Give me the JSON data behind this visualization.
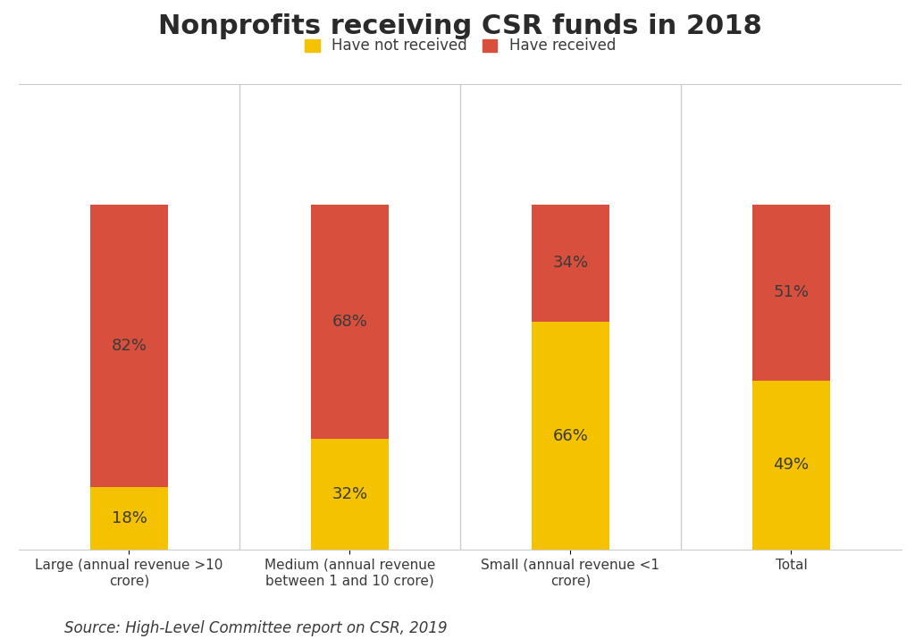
{
  "title": "Nonprofits receiving CSR funds in 2018",
  "categories": [
    "Large (annual revenue >10\ncrore)",
    "Medium (annual revenue\nbetween 1 and 10 crore)",
    "Small (annual revenue <1\ncrore)",
    "Total"
  ],
  "have_not_received": [
    18,
    32,
    66,
    49
  ],
  "have_received": [
    82,
    68,
    34,
    51
  ],
  "color_not_received": "#F5C200",
  "color_received": "#D94F3D",
  "legend_not_received": "Have not received",
  "legend_received": "Have received",
  "source_text": "Source: High-Level Committee report on CSR, 2019",
  "background_color": "#FFFFFF",
  "bar_width": 0.35,
  "ylim": [
    0,
    135
  ],
  "title_fontsize": 22,
  "label_fontsize": 13,
  "tick_fontsize": 11,
  "legend_fontsize": 12,
  "source_fontsize": 12
}
